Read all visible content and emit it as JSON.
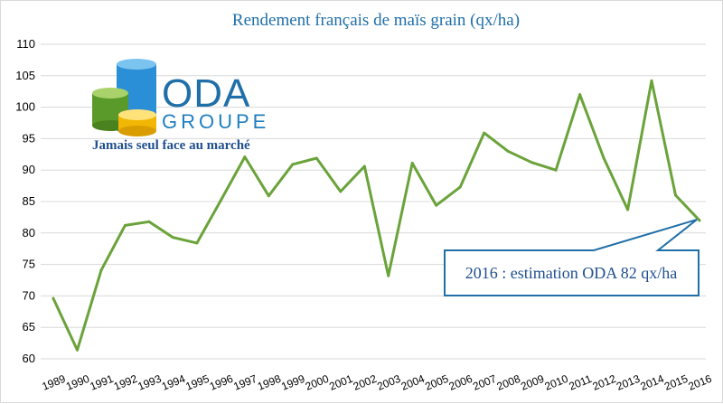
{
  "chart_data": {
    "type": "line",
    "title": "Rendement français de maïs grain (qx/ha)",
    "xlabel": "",
    "ylabel": "",
    "ylim": [
      60,
      110
    ],
    "yticks": [
      60,
      65,
      70,
      75,
      80,
      85,
      90,
      95,
      100,
      105,
      110
    ],
    "grid": true,
    "legend": "none",
    "categories": [
      "1989",
      "1990",
      "1991",
      "1992",
      "1993",
      "1994",
      "1995",
      "1996",
      "1997",
      "1998",
      "1999",
      "2000",
      "2001",
      "2002",
      "2003",
      "2004",
      "2005",
      "2006",
      "2007",
      "2008",
      "2009",
      "2010",
      "2011",
      "2012",
      "2013",
      "2014",
      "2015",
      "2016"
    ],
    "series": [
      {
        "name": "",
        "color": "#6aa33a",
        "values": [
          69.6,
          61.4,
          74.1,
          81.2,
          81.8,
          79.3,
          78.4,
          85.2,
          92.1,
          85.9,
          90.9,
          91.9,
          86.6,
          90.6,
          73.2,
          91.1,
          84.4,
          87.3,
          95.9,
          93.0,
          91.2,
          90.0,
          102.0,
          91.9,
          83.7,
          104.2,
          86.0,
          82.0
        ]
      }
    ],
    "annotations": [
      {
        "text": "2016 : estimation ODA 82 qx/ha",
        "x": "2016",
        "y": 82
      }
    ]
  },
  "logo": {
    "name": "ODA",
    "subname": "GROUPE",
    "tagline": "Jamais seul face au marché"
  },
  "colors": {
    "title": "#1f6fa8",
    "series": "#6aa33a",
    "callout_border": "#1f6fa8",
    "grid": "#d9d9d9"
  }
}
